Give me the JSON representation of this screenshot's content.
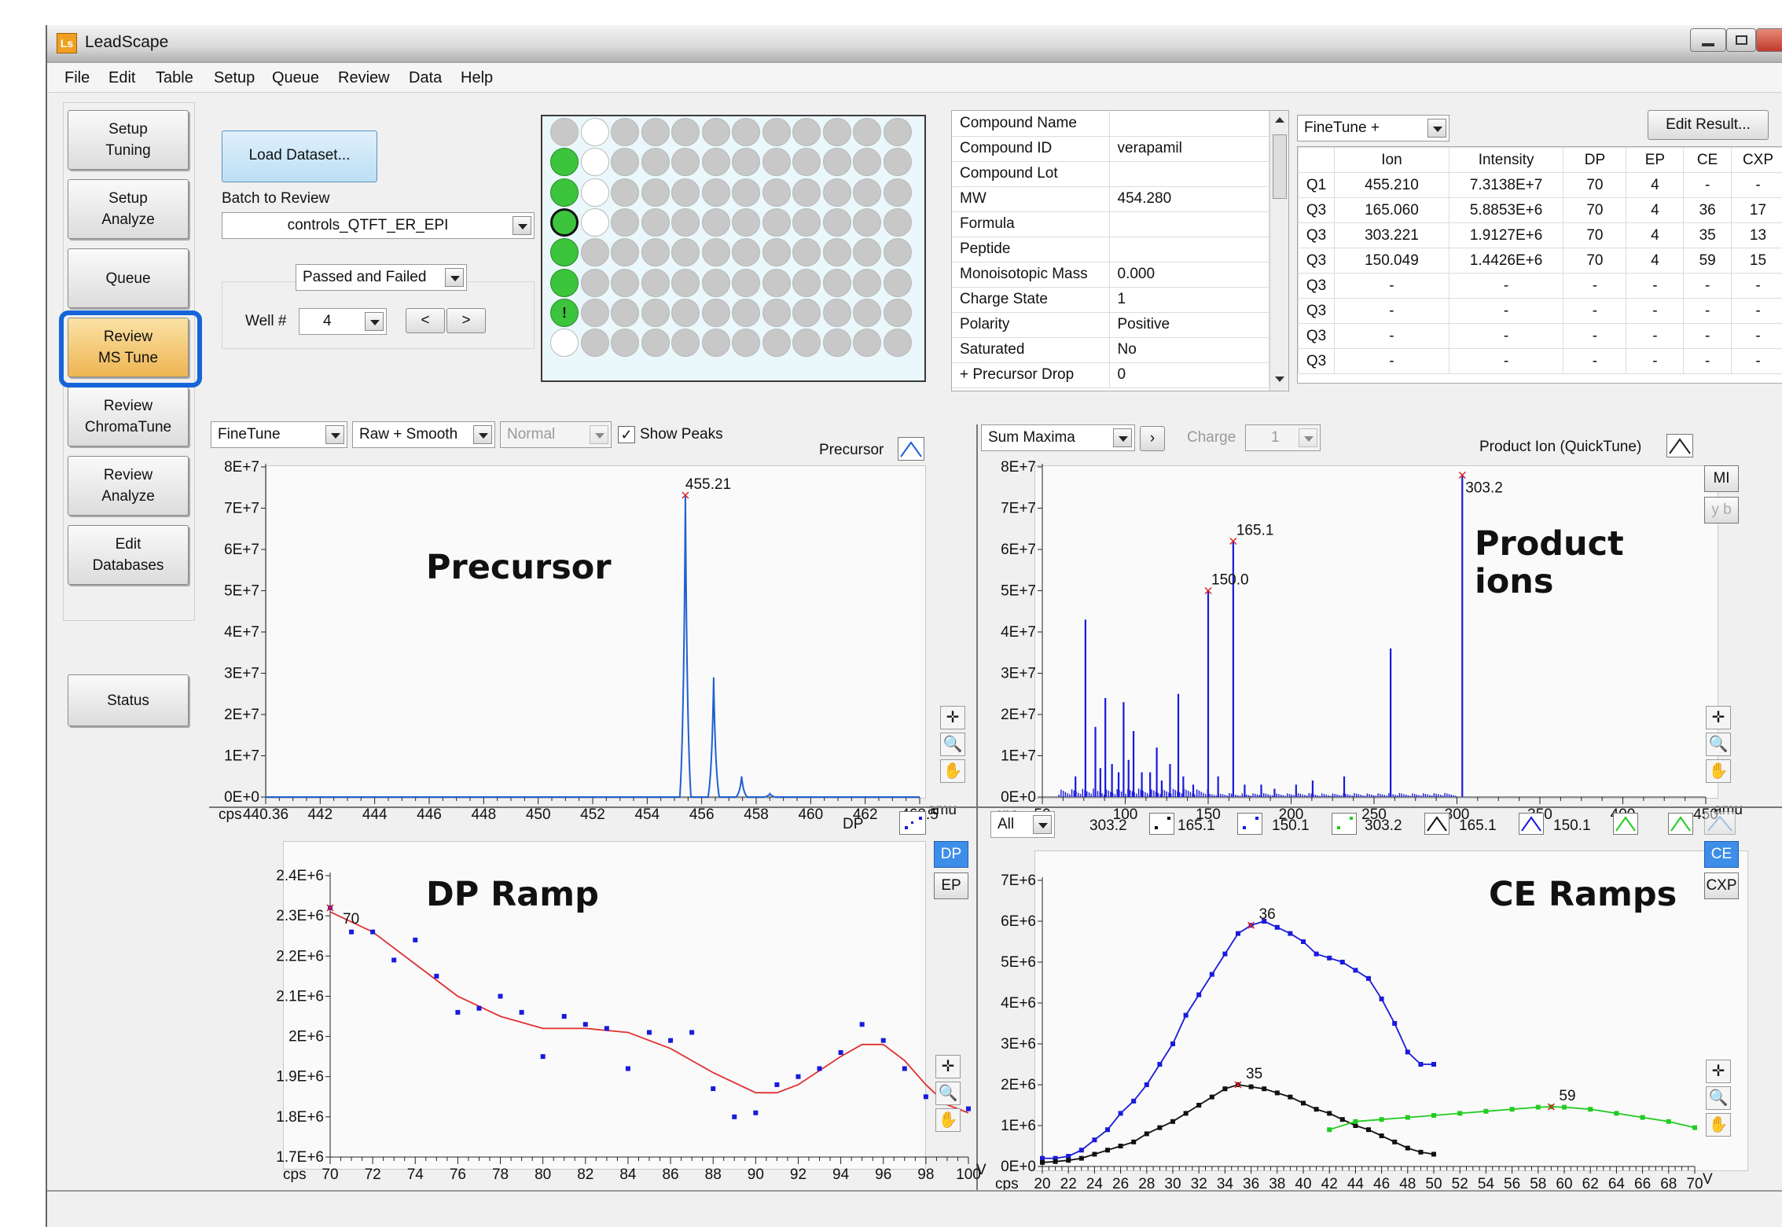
{
  "window": {
    "title": "LeadScape",
    "app_icon": "Ls"
  },
  "menu": [
    "File",
    "Edit",
    "Table",
    "Setup",
    "Queue",
    "Review",
    "Data",
    "Help"
  ],
  "nav": [
    {
      "label": "Setup\nTuning"
    },
    {
      "label": "Setup\nAnalyze"
    },
    {
      "label": "Queue"
    },
    {
      "label": "Review\nMS Tune"
    },
    {
      "label": "Review\nChromaTune"
    },
    {
      "label": "Review\nAnalyze"
    },
    {
      "label": "Edit\nDatabases"
    },
    {
      "label": "Status"
    }
  ],
  "load_button": "Load Dataset...",
  "batch": {
    "label": "Batch to Review",
    "value": "controls_QTFT_ER_EPI"
  },
  "filter": "Passed and Failed",
  "well": {
    "label": "Well #",
    "value": "4",
    "prev": "<",
    "next": ">"
  },
  "plate": {
    "rows": [
      [
        "gray",
        "white",
        "gray",
        "gray",
        "gray",
        "gray",
        "gray",
        "gray",
        "gray",
        "gray",
        "gray",
        "gray"
      ],
      [
        "green",
        "white",
        "gray",
        "gray",
        "gray",
        "gray",
        "gray",
        "gray",
        "gray",
        "gray",
        "gray",
        "gray"
      ],
      [
        "green",
        "white",
        "gray",
        "gray",
        "gray",
        "gray",
        "gray",
        "gray",
        "gray",
        "gray",
        "gray",
        "gray"
      ],
      [
        "green-selected",
        "white",
        "gray",
        "gray",
        "gray",
        "gray",
        "gray",
        "gray",
        "gray",
        "gray",
        "gray",
        "gray"
      ],
      [
        "green",
        "gray",
        "gray",
        "gray",
        "gray",
        "gray",
        "gray",
        "gray",
        "gray",
        "gray",
        "gray",
        "gray"
      ],
      [
        "green",
        "gray",
        "gray",
        "gray",
        "gray",
        "gray",
        "gray",
        "gray",
        "gray",
        "gray",
        "gray",
        "gray"
      ],
      [
        "green-warning",
        "gray",
        "gray",
        "gray",
        "gray",
        "gray",
        "gray",
        "gray",
        "gray",
        "gray",
        "gray",
        "gray"
      ],
      [
        "white",
        "gray",
        "gray",
        "gray",
        "gray",
        "gray",
        "gray",
        "gray",
        "gray",
        "gray",
        "gray",
        "gray"
      ]
    ],
    "warning_mark": "!"
  },
  "compound": [
    [
      "Compound Name",
      ""
    ],
    [
      "Compound ID",
      "verapamil"
    ],
    [
      "Compound Lot",
      ""
    ],
    [
      "MW",
      "454.280"
    ],
    [
      "Formula",
      ""
    ],
    [
      "Peptide",
      ""
    ],
    [
      "Monoisotopic Mass",
      "0.000"
    ],
    [
      "Charge State",
      "1"
    ],
    [
      "Polarity",
      "Positive"
    ],
    [
      "Saturated",
      "No"
    ],
    [
      "+ Precursor Drop",
      "0"
    ]
  ],
  "ion_table": {
    "mode": "FineTune +",
    "edit_button": "Edit Result...",
    "headers": [
      "",
      "Ion",
      "Intensity",
      "DP",
      "EP",
      "CE",
      "CXP"
    ],
    "rows": [
      [
        "Q1",
        "455.210",
        "7.3138E+7",
        "70",
        "4",
        "-",
        "-"
      ],
      [
        "Q3",
        "165.060",
        "5.8853E+6",
        "70",
        "4",
        "36",
        "17"
      ],
      [
        "Q3",
        "303.221",
        "1.9127E+6",
        "70",
        "4",
        "35",
        "13"
      ],
      [
        "Q3",
        "150.049",
        "1.4426E+6",
        "70",
        "4",
        "59",
        "15"
      ],
      [
        "Q3",
        "-",
        "-",
        "-",
        "-",
        "-",
        "-"
      ],
      [
        "Q3",
        "-",
        "-",
        "-",
        "-",
        "-",
        "-"
      ],
      [
        "Q3",
        "-",
        "-",
        "-",
        "-",
        "-",
        "-"
      ],
      [
        "Q3",
        "-",
        "-",
        "-",
        "-",
        "-",
        "-"
      ]
    ]
  },
  "precursor_panel": {
    "mode": "FineTune",
    "smooth": "Raw + Smooth",
    "scale": "Normal",
    "show_peaks": "Show Peaks",
    "legend": "Precursor",
    "annotation": "Precursor"
  },
  "product_panel": {
    "mode": "Sum Maxima",
    "charge_label": "Charge",
    "charge_value": "1",
    "legend": "Product Ion (QuickTune)",
    "annotation": "Product\nions",
    "mi": "MI",
    "yb": "y b"
  },
  "dp_panel": {
    "legend": "DP",
    "annotation": "DP Ramp",
    "dp_btn": "DP",
    "ep_btn": "EP"
  },
  "ce_panel": {
    "mode": "All",
    "legend": [
      "303.2",
      "165.1",
      "150.1",
      "303.2",
      "165.1",
      "150.1"
    ],
    "annotation": "CE Ramps",
    "ce_btn": "CE",
    "cxp_btn": "CXP"
  },
  "chart_data": [
    {
      "type": "line",
      "name": "precursor",
      "xlim": [
        440.36,
        463.5
      ],
      "ylim": [
        0,
        80000000
      ],
      "yticks": [
        "0E+0",
        "1E+7",
        "2E+7",
        "3E+7",
        "4E+7",
        "5E+7",
        "6E+7",
        "7E+7",
        "8E+7"
      ],
      "xticks": [
        "440.36",
        "442",
        "444",
        "446",
        "448",
        "450",
        "452",
        "454",
        "456",
        "458",
        "460",
        "462",
        "463.5"
      ],
      "ylabel": "cps",
      "xlabel": "amu",
      "peaks": [
        {
          "x": 455.21,
          "y": 73138000,
          "label": "455.21"
        },
        {
          "x": 456.21,
          "y": 29000000
        },
        {
          "x": 457.2,
          "y": 5000000
        },
        {
          "x": 458.2,
          "y": 800000
        }
      ]
    },
    {
      "type": "bar",
      "name": "product",
      "xlim": [
        50,
        450
      ],
      "ylim": [
        0,
        80000000
      ],
      "yticks": [
        "0E+0",
        "1E+7",
        "2E+7",
        "3E+7",
        "4E+7",
        "5E+7",
        "6E+7",
        "7E+7",
        "8E+7"
      ],
      "xticks": [
        "50",
        "100",
        "150",
        "200",
        "250",
        "300",
        "350",
        "400",
        "450"
      ],
      "ylabel": "cps",
      "xlabel": "amu",
      "labels": [
        {
          "x": 150.0,
          "y": 50000000,
          "label": "150.0"
        },
        {
          "x": 165.1,
          "y": 62000000,
          "label": "165.1"
        },
        {
          "x": 303.2,
          "y": 78000000,
          "label": "303.2"
        }
      ],
      "sticks": [
        [
          70,
          5000000
        ],
        [
          76,
          43000000
        ],
        [
          82,
          17000000
        ],
        [
          85,
          7000000
        ],
        [
          88,
          24000000
        ],
        [
          92,
          8000000
        ],
        [
          96,
          6000000
        ],
        [
          99,
          23000000
        ],
        [
          102,
          9000000
        ],
        [
          105,
          16000000
        ],
        [
          110,
          6000000
        ],
        [
          115,
          6000000
        ],
        [
          119,
          12000000
        ],
        [
          122,
          4000000
        ],
        [
          127,
          8000000
        ],
        [
          132,
          25000000
        ],
        [
          135,
          5000000
        ],
        [
          141,
          3000000
        ],
        [
          150,
          50000000
        ],
        [
          156,
          5000000
        ],
        [
          165.1,
          62000000
        ],
        [
          172,
          3000000
        ],
        [
          182,
          3000000
        ],
        [
          190,
          2000000
        ],
        [
          203,
          3000000
        ],
        [
          213,
          4000000
        ],
        [
          232,
          5000000
        ],
        [
          260,
          36000000
        ],
        [
          303.2,
          78000000
        ]
      ]
    },
    {
      "type": "scatter",
      "name": "dp_ramp",
      "xlim": [
        70,
        100
      ],
      "ylim": [
        1700000,
        2400000
      ],
      "yticks": [
        "1.7E+6",
        "1.8E+6",
        "1.9E+6",
        "2E+6",
        "2.1E+6",
        "2.2E+6",
        "2.3E+6",
        "2.4E+6"
      ],
      "xticks": [
        "70",
        "72",
        "74",
        "76",
        "78",
        "80",
        "82",
        "84",
        "86",
        "88",
        "90",
        "92",
        "94",
        "96",
        "98",
        "100"
      ],
      "ylabel": "cps",
      "xlabel": "V",
      "marker": {
        "x": 70,
        "label": "70"
      },
      "points": [
        [
          70,
          2320000
        ],
        [
          71,
          2260000
        ],
        [
          72,
          2260000
        ],
        [
          73,
          2190000
        ],
        [
          74,
          2240000
        ],
        [
          75,
          2150000
        ],
        [
          76,
          2060000
        ],
        [
          77,
          2070000
        ],
        [
          78,
          2100000
        ],
        [
          79,
          2060000
        ],
        [
          80,
          1950000
        ],
        [
          81,
          2050000
        ],
        [
          82,
          2030000
        ],
        [
          83,
          2020000
        ],
        [
          84,
          1920000
        ],
        [
          85,
          2010000
        ],
        [
          86,
          1990000
        ],
        [
          87,
          2010000
        ],
        [
          88,
          1870000
        ],
        [
          89,
          1800000
        ],
        [
          90,
          1810000
        ],
        [
          91,
          1880000
        ],
        [
          92,
          1900000
        ],
        [
          93,
          1920000
        ],
        [
          94,
          1960000
        ],
        [
          95,
          2030000
        ],
        [
          96,
          1990000
        ],
        [
          97,
          1920000
        ],
        [
          98,
          1850000
        ],
        [
          99,
          1880000
        ],
        [
          100,
          1820000
        ]
      ],
      "fit": [
        [
          70,
          2310000
        ],
        [
          72,
          2260000
        ],
        [
          74,
          2180000
        ],
        [
          76,
          2100000
        ],
        [
          78,
          2050000
        ],
        [
          80,
          2020000
        ],
        [
          82,
          2020000
        ],
        [
          84,
          2010000
        ],
        [
          86,
          1970000
        ],
        [
          88,
          1910000
        ],
        [
          90,
          1860000
        ],
        [
          91,
          1860000
        ],
        [
          92,
          1880000
        ],
        [
          94,
          1950000
        ],
        [
          95,
          1980000
        ],
        [
          96,
          1980000
        ],
        [
          97,
          1940000
        ],
        [
          98,
          1880000
        ],
        [
          99,
          1830000
        ],
        [
          100,
          1810000
        ]
      ]
    },
    {
      "type": "line",
      "name": "ce_ramps",
      "xlim": [
        20,
        70
      ],
      "ylim": [
        0,
        7000000
      ],
      "yticks": [
        "0E+0",
        "1E+6",
        "2E+6",
        "3E+6",
        "4E+6",
        "5E+6",
        "6E+6",
        "7E+6"
      ],
      "xticks": [
        "20",
        "22",
        "24",
        "26",
        "28",
        "30",
        "32",
        "34",
        "36",
        "38",
        "40",
        "42",
        "44",
        "46",
        "48",
        "50",
        "52",
        "54",
        "56",
        "58",
        "60",
        "62",
        "64",
        "66",
        "68",
        "70"
      ],
      "ylabel": "cps",
      "xlabel": "V",
      "series": [
        {
          "name": "165.1",
          "color": "#1a1adc",
          "label": "36",
          "labelx": 36,
          "points": [
            [
              20,
              200000
            ],
            [
              21,
              200000
            ],
            [
              22,
              250000
            ],
            [
              23,
              400000
            ],
            [
              24,
              650000
            ],
            [
              25,
              900000
            ],
            [
              26,
              1300000
            ],
            [
              27,
              1600000
            ],
            [
              28,
              2000000
            ],
            [
              29,
              2500000
            ],
            [
              30,
              3000000
            ],
            [
              31,
              3700000
            ],
            [
              32,
              4200000
            ],
            [
              33,
              4700000
            ],
            [
              34,
              5200000
            ],
            [
              35,
              5700000
            ],
            [
              36,
              5900000
            ],
            [
              37,
              6000000
            ],
            [
              38,
              5850000
            ],
            [
              39,
              5700000
            ],
            [
              40,
              5500000
            ],
            [
              41,
              5200000
            ],
            [
              42,
              5100000
            ],
            [
              43,
              5000000
            ],
            [
              44,
              4800000
            ],
            [
              45,
              4600000
            ],
            [
              46,
              4100000
            ],
            [
              47,
              3500000
            ],
            [
              48,
              2800000
            ],
            [
              49,
              2500000
            ],
            [
              50,
              2500000
            ]
          ]
        },
        {
          "name": "303.2",
          "color": "#111111",
          "label": "35",
          "labelx": 35,
          "points": [
            [
              20,
              100000
            ],
            [
              21,
              120000
            ],
            [
              22,
              150000
            ],
            [
              23,
              200000
            ],
            [
              24,
              300000
            ],
            [
              25,
              400000
            ],
            [
              26,
              500000
            ],
            [
              27,
              600000
            ],
            [
              28,
              800000
            ],
            [
              29,
              950000
            ],
            [
              30,
              1100000
            ],
            [
              31,
              1300000
            ],
            [
              32,
              1500000
            ],
            [
              33,
              1700000
            ],
            [
              34,
              1900000
            ],
            [
              35,
              2000000
            ],
            [
              36,
              1950000
            ],
            [
              37,
              1900000
            ],
            [
              38,
              1800000
            ],
            [
              39,
              1700000
            ],
            [
              40,
              1550000
            ],
            [
              41,
              1400000
            ],
            [
              42,
              1300000
            ],
            [
              43,
              1150000
            ],
            [
              44,
              1000000
            ],
            [
              45,
              900000
            ],
            [
              46,
              750000
            ],
            [
              47,
              600000
            ],
            [
              48,
              450000
            ],
            [
              49,
              350000
            ],
            [
              50,
              300000
            ]
          ]
        },
        {
          "name": "150.1",
          "color": "#22cc22",
          "label": "59",
          "labelx": 59,
          "points": [
            [
              42,
              900000
            ],
            [
              44,
              1100000
            ],
            [
              46,
              1150000
            ],
            [
              48,
              1200000
            ],
            [
              50,
              1250000
            ],
            [
              52,
              1300000
            ],
            [
              54,
              1350000
            ],
            [
              56,
              1400000
            ],
            [
              58,
              1450000
            ],
            [
              59,
              1460000
            ],
            [
              60,
              1450000
            ],
            [
              62,
              1400000
            ],
            [
              64,
              1300000
            ],
            [
              66,
              1200000
            ],
            [
              68,
              1100000
            ],
            [
              70,
              950000
            ]
          ]
        }
      ]
    }
  ]
}
